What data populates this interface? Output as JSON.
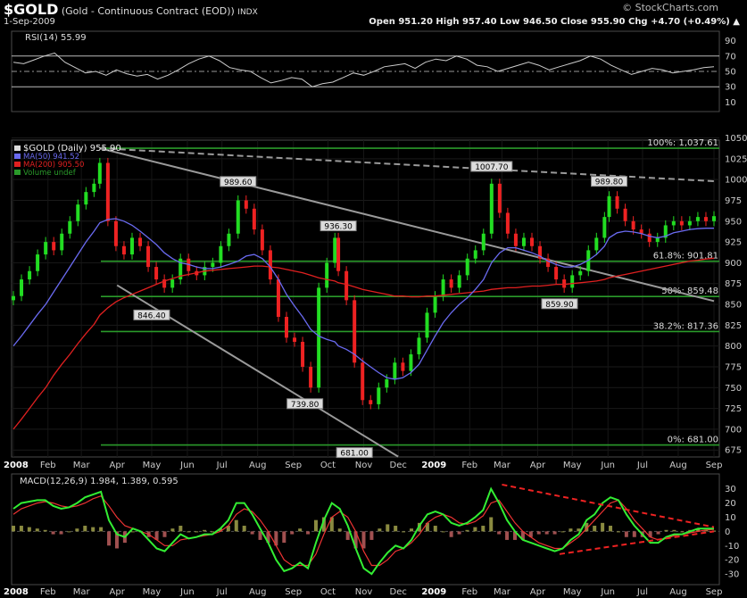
{
  "header": {
    "symbol": "$GOLD",
    "description": "(Gold - Continuous Contract (EOD))",
    "exchange": "INDX",
    "watermark": "© StockCharts.com",
    "date": "1-Sep-2009",
    "ohlc_text": "Open 951.20  High 957.40  Low 946.50  Close 955.90  Chg +4.70 (+0.49%) ▲"
  },
  "colors": {
    "background": "#000000",
    "panel_border": "#4a4a4a",
    "price_up": "#22dd22",
    "price_down": "#ee2222",
    "ma50": "#6a6af0",
    "ma200": "#e02020",
    "fib": "#2a9a2a",
    "trend": "#9a9a9a",
    "macd_line": "#33ee33",
    "signal_line": "#ee3333",
    "triangle": "#ee2222"
  },
  "x_axis_labels": [
    "2008",
    "Feb",
    "Mar",
    "Apr",
    "May",
    "Jun",
    "Jul",
    "Aug",
    "Sep",
    "Oct",
    "Nov",
    "Dec",
    "2009",
    "Feb",
    "Mar",
    "Apr",
    "May",
    "Jun",
    "Jul",
    "Aug",
    "Sep"
  ],
  "chart_data": [
    {
      "type": "line",
      "panel": "rsi",
      "legend": "RSI(14) 55.99",
      "y_ticks": [
        90,
        70,
        50,
        30,
        10
      ],
      "ylim": [
        0,
        100
      ],
      "series": [
        {
          "name": "RSI(14)",
          "values": [
            62,
            60,
            65,
            70,
            74,
            62,
            55,
            48,
            50,
            45,
            52,
            47,
            44,
            46,
            40,
            45,
            52,
            60,
            66,
            70,
            64,
            55,
            52,
            50,
            42,
            35,
            38,
            42,
            40,
            30,
            34,
            36,
            42,
            48,
            45,
            50,
            56,
            58,
            60,
            54,
            62,
            66,
            64,
            70,
            66,
            58,
            56,
            50,
            54,
            58,
            62,
            58,
            52,
            56,
            60,
            64,
            70,
            66,
            58,
            52,
            46,
            50,
            54,
            52,
            48,
            50,
            52,
            55,
            56
          ]
        }
      ]
    },
    {
      "type": "line",
      "panel": "price",
      "legend": [
        "$GOLD (Daily) 955.90",
        "MA(50) 941.52",
        "MA(200) 905.50",
        "Volume undef"
      ],
      "x": [
        "2008-01-02",
        "2008-01-09",
        "2008-01-16",
        "2008-01-23",
        "2008-01-30",
        "2008-02-06",
        "2008-02-13",
        "2008-02-20",
        "2008-02-27",
        "2008-03-05",
        "2008-03-12",
        "2008-03-17",
        "2008-03-24",
        "2008-03-31",
        "2008-04-07",
        "2008-04-14",
        "2008-04-21",
        "2008-04-28",
        "2008-05-05",
        "2008-05-12",
        "2008-05-19",
        "2008-05-26",
        "2008-06-02",
        "2008-06-09",
        "2008-06-16",
        "2008-06-23",
        "2008-06-30",
        "2008-07-07",
        "2008-07-15",
        "2008-07-22",
        "2008-07-29",
        "2008-08-05",
        "2008-08-12",
        "2008-08-19",
        "2008-08-26",
        "2008-09-02",
        "2008-09-09",
        "2008-09-16",
        "2008-09-23",
        "2008-09-30",
        "2008-10-07",
        "2008-10-10",
        "2008-10-17",
        "2008-10-24",
        "2008-10-31",
        "2008-11-07",
        "2008-11-14",
        "2008-11-21",
        "2008-11-28",
        "2008-12-05",
        "2008-12-12",
        "2008-12-19",
        "2008-12-26",
        "2009-01-02",
        "2009-01-09",
        "2009-01-16",
        "2009-01-23",
        "2009-01-30",
        "2009-02-06",
        "2009-02-13",
        "2009-02-20",
        "2009-02-27",
        "2009-03-06",
        "2009-03-13",
        "2009-03-20",
        "2009-03-27",
        "2009-04-03",
        "2009-04-10",
        "2009-04-17",
        "2009-04-24",
        "2009-05-01",
        "2009-05-08",
        "2009-05-15",
        "2009-05-22",
        "2009-05-29",
        "2009-06-02",
        "2009-06-09",
        "2009-06-16",
        "2009-06-23",
        "2009-06-30",
        "2009-07-07",
        "2009-07-14",
        "2009-07-21",
        "2009-07-28",
        "2009-08-04",
        "2009-08-11",
        "2009-08-18",
        "2009-08-25",
        "2009-09-01"
      ],
      "close": [
        860,
        880,
        890,
        910,
        925,
        915,
        935,
        950,
        970,
        985,
        995,
        1020,
        950,
        920,
        910,
        930,
        920,
        895,
        880,
        870,
        880,
        905,
        890,
        885,
        895,
        900,
        920,
        935,
        975,
        965,
        940,
        915,
        880,
        835,
        810,
        805,
        775,
        750,
        870,
        900,
        930,
        890,
        855,
        780,
        735,
        730,
        750,
        760,
        780,
        770,
        790,
        810,
        840,
        860,
        880,
        870,
        885,
        905,
        915,
        935,
        995,
        960,
        935,
        920,
        930,
        920,
        905,
        895,
        880,
        870,
        885,
        890,
        915,
        930,
        955,
        980,
        965,
        950,
        940,
        935,
        925,
        930,
        945,
        950,
        945,
        950,
        955,
        950,
        956
      ],
      "ma50": [
        800,
        812,
        825,
        838,
        850,
        865,
        880,
        895,
        910,
        925,
        938,
        948,
        952,
        953,
        950,
        945,
        938,
        930,
        922,
        912,
        905,
        900,
        898,
        895,
        893,
        893,
        895,
        898,
        902,
        908,
        910,
        905,
        895,
        880,
        862,
        848,
        835,
        820,
        812,
        808,
        805,
        800,
        796,
        790,
        782,
        775,
        768,
        762,
        760,
        762,
        768,
        778,
        795,
        812,
        828,
        840,
        850,
        858,
        868,
        880,
        900,
        912,
        918,
        918,
        915,
        912,
        908,
        902,
        898,
        895,
        895,
        898,
        903,
        910,
        920,
        930,
        936,
        938,
        937,
        935,
        932,
        930,
        932,
        936,
        938,
        940,
        941,
        941.5,
        941.52
      ],
      "ma200": [
        700,
        712,
        725,
        738,
        750,
        765,
        778,
        790,
        803,
        815,
        826,
        837,
        846,
        853,
        858,
        862,
        866,
        870,
        874,
        878,
        881,
        884,
        886,
        888,
        890,
        891,
        892,
        893,
        894,
        895,
        896,
        896,
        895,
        894,
        892,
        890,
        888,
        885,
        882,
        880,
        878,
        876,
        874,
        871,
        868,
        866,
        864,
        862,
        860,
        860,
        859,
        859,
        860,
        860,
        861,
        862,
        863,
        864,
        865,
        866,
        868,
        869,
        870,
        870,
        871,
        872,
        872,
        873,
        874,
        874,
        875,
        876,
        877,
        878,
        880,
        882,
        884,
        886,
        888,
        890,
        892,
        894,
        896,
        898,
        900,
        902,
        903,
        904.5,
        905.5
      ],
      "ylim": [
        672,
        1042
      ],
      "y_ticks": [
        1050,
        1025,
        1000,
        975,
        950,
        925,
        900,
        875,
        850,
        825,
        800,
        775,
        750,
        725,
        700,
        675
      ],
      "fib_levels": [
        {
          "label": "100%: 1,037.61",
          "value": 1037.61
        },
        {
          "label": "61.8%: 901.81",
          "value": 901.81
        },
        {
          "label": "50%: 859.48",
          "value": 859.48
        },
        {
          "label": "38.2%: 817.36",
          "value": 817.36
        },
        {
          "label": "0%: 681.00",
          "value": 681.0
        }
      ],
      "annotations": [
        {
          "text": "989.60",
          "date": "2008-07-15",
          "value": 989.6
        },
        {
          "text": "936.30",
          "date": "2008-10-10",
          "value": 936.3
        },
        {
          "text": "846.40",
          "date": "2008-05-01",
          "value": 846.4
        },
        {
          "text": "739.80",
          "date": "2008-09-11",
          "value": 739.8
        },
        {
          "text": "681.00",
          "date": "2008-10-24",
          "value": 681.0
        },
        {
          "text": "1007.70",
          "date": "2009-02-20",
          "value": 1007.7
        },
        {
          "text": "989.80",
          "date": "2009-06-02",
          "value": 989.8
        },
        {
          "text": "859.90",
          "date": "2009-04-20",
          "value": 859.9
        }
      ],
      "trend_lines": [
        {
          "style": "solid",
          "from": {
            "date": "2008-03-17",
            "value": 1037.61
          },
          "to": {
            "date": "2009-09-01",
            "value": 854
          }
        },
        {
          "style": "solid",
          "from": {
            "date": "2008-04-01",
            "value": 873
          },
          "to": {
            "date": "2008-12-01",
            "value": 667
          }
        },
        {
          "style": "dashed",
          "from": {
            "date": "2008-03-17",
            "value": 1037.61
          },
          "to": {
            "date": "2009-09-01",
            "value": 998
          }
        }
      ]
    },
    {
      "type": "bar",
      "panel": "macd",
      "legend": "MACD(12,26,9) 1.984, 1.389, 0.595",
      "ylim": [
        -35,
        38
      ],
      "y_ticks": [
        30,
        20,
        10,
        0,
        -10,
        -20,
        -30
      ],
      "series": [
        {
          "name": "MACD(12,26,9)",
          "values": [
            16,
            20,
            21,
            22,
            22,
            18,
            16,
            17,
            20,
            24,
            26,
            28,
            8,
            -2,
            -4,
            2,
            0,
            -6,
            -12,
            -14,
            -8,
            -2,
            -5,
            -4,
            -2,
            -2,
            2,
            8,
            20,
            20,
            12,
            2,
            -8,
            -20,
            -28,
            -26,
            -22,
            -26,
            -8,
            8,
            20,
            16,
            4,
            -12,
            -26,
            -30,
            -22,
            -15,
            -10,
            -12,
            -6,
            4,
            12,
            14,
            12,
            6,
            4,
            6,
            10,
            15,
            30,
            20,
            8,
            0,
            -6,
            -8,
            -10,
            -12,
            -14,
            -12,
            -6,
            -2,
            8,
            12,
            20,
            24,
            22,
            12,
            4,
            -2,
            -8,
            -8,
            -4,
            -2,
            -2,
            0,
            2,
            2,
            1.984
          ]
        },
        {
          "name": "Signal",
          "values": [
            12,
            16,
            18,
            20,
            21,
            20,
            18,
            17,
            18,
            20,
            23,
            25,
            18,
            10,
            4,
            2,
            0,
            -2,
            -6,
            -10,
            -10,
            -6,
            -5,
            -4,
            -3,
            -2,
            0,
            4,
            12,
            16,
            14,
            8,
            0,
            -10,
            -20,
            -24,
            -24,
            -24,
            -16,
            -2,
            10,
            14,
            10,
            0,
            -14,
            -24,
            -24,
            -20,
            -14,
            -12,
            -8,
            -2,
            6,
            10,
            12,
            10,
            6,
            5,
            7,
            11,
            20,
            22,
            14,
            6,
            0,
            -4,
            -8,
            -10,
            -12,
            -12,
            -8,
            -4,
            2,
            8,
            14,
            20,
            22,
            16,
            8,
            2,
            -4,
            -6,
            -5,
            -3,
            -2,
            -1,
            0,
            1,
            1.389
          ]
        }
      ],
      "triangle_lines": [
        {
          "from": {
            "date": "2009-03-01",
            "value": 33
          },
          "to": {
            "date": "2009-09-01",
            "value": 3
          }
        },
        {
          "from": {
            "date": "2009-04-20",
            "value": -16
          },
          "to": {
            "date": "2009-09-01",
            "value": 0
          }
        }
      ]
    }
  ]
}
